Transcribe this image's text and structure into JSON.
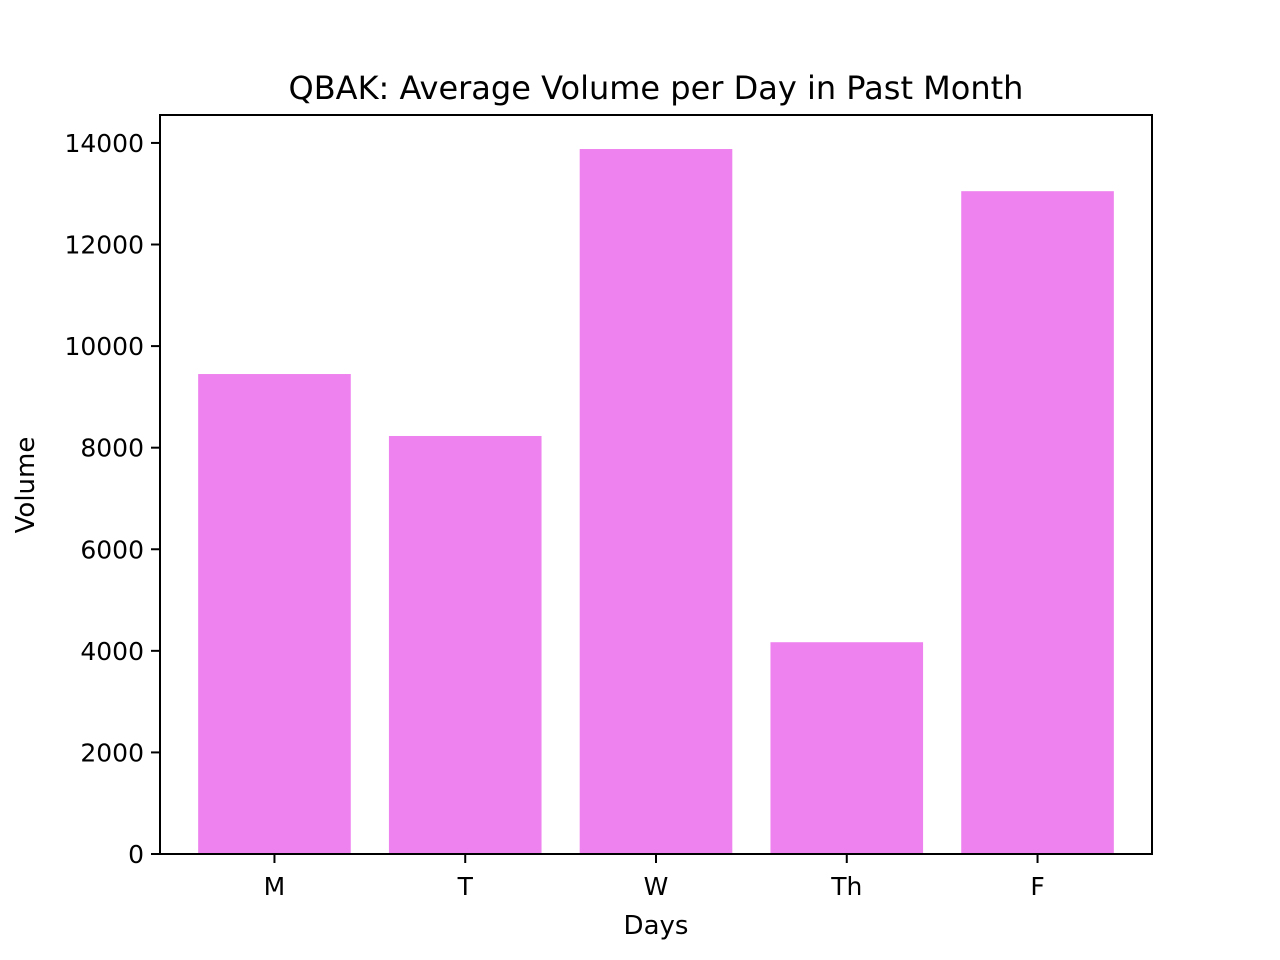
{
  "chart_data": {
    "type": "bar",
    "title": "QBAK: Average Volume per Day in Past Month",
    "xlabel": "Days",
    "ylabel": "Volume",
    "categories": [
      "M",
      "T",
      "W",
      "Th",
      "F"
    ],
    "values": [
      9450,
      8230,
      13880,
      4170,
      13050
    ],
    "ylim": [
      0,
      14550
    ],
    "yticks": [
      0,
      2000,
      4000,
      6000,
      8000,
      10000,
      12000,
      14000
    ],
    "grid": false,
    "legend": "none",
    "bar_color": "#ee82ee"
  }
}
